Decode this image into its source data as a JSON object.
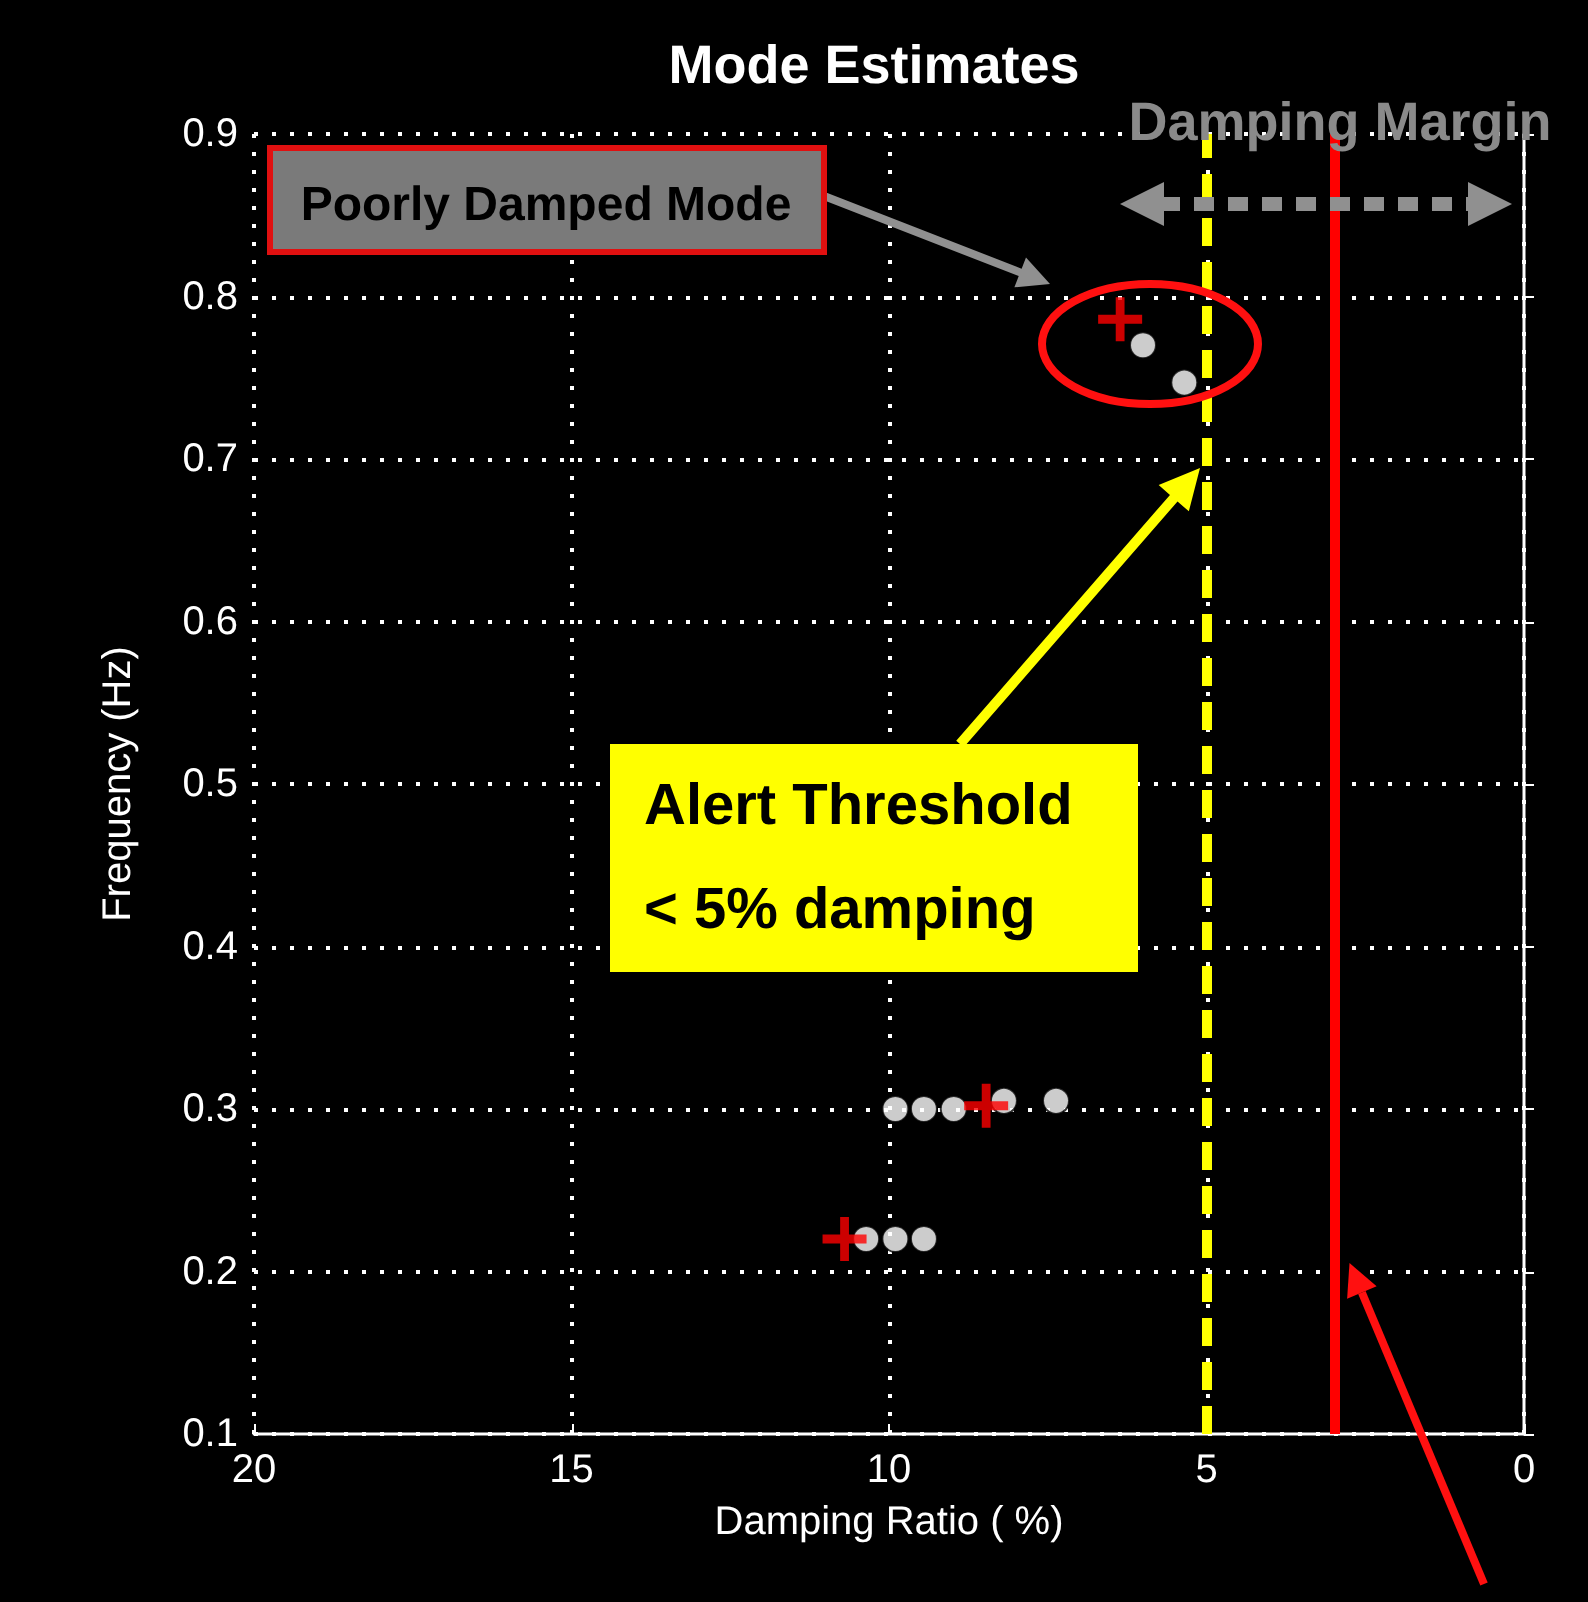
{
  "chart_data": {
    "type": "scatter",
    "title": "Mode Estimates",
    "xlabel": "Damping Ratio ( %)",
    "ylabel": "Frequency (Hz)",
    "xlim": [
      20,
      0
    ],
    "xticks": [
      20,
      15,
      10,
      5,
      0
    ],
    "ylim": [
      0.1,
      0.9
    ],
    "yticks": [
      0.1,
      0.2,
      0.3,
      0.4,
      0.5,
      0.6,
      0.7,
      0.8,
      0.9
    ],
    "grid": true,
    "series": [
      {
        "color": "#ffffff",
        "marker": "circle",
        "x": [
          6.0,
          5.35,
          9.9,
          9.45,
          8.98,
          8.19,
          7.37,
          10.36,
          9.9,
          9.45
        ],
        "values": [
          0.77,
          0.747,
          0.3,
          0.3,
          0.3,
          0.305,
          0.305,
          0.22,
          0.22,
          0.22
        ]
      },
      {
        "color": "#ff0000",
        "marker": "cross",
        "x": [
          6.36,
          8.47,
          10.7
        ],
        "values": [
          0.786,
          0.302,
          0.22
        ]
      }
    ],
    "ref_lines": [
      {
        "axis": "x",
        "value": 5,
        "color": "#ffff00",
        "line_style": "dashed"
      },
      {
        "axis": "x",
        "value": 3,
        "color": "#ff0000",
        "line_style": "solid"
      }
    ],
    "annotations": [
      "Poorly Damped Mode",
      "Damping Margin",
      "Alert Threshold < 5% damping"
    ]
  }
}
